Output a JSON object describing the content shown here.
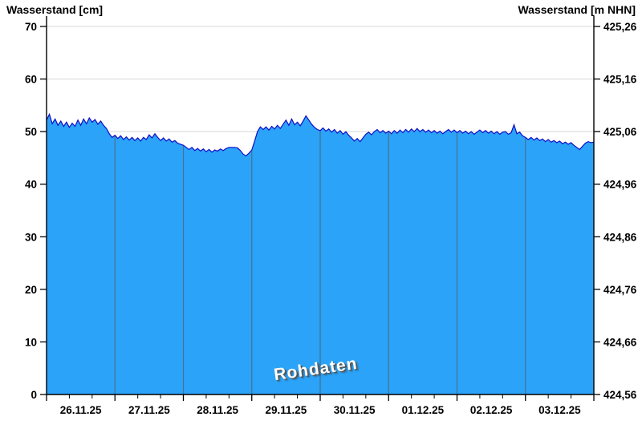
{
  "chart_data": {
    "type": "area",
    "title_left": "Wasserstand [cm]",
    "title_right": "Wasserstand [m NHN]",
    "watermark": "Rohdaten",
    "x_day_labels": [
      "26.11.25",
      "27.11.25",
      "28.11.25",
      "29.11.25",
      "30.11.25",
      "01.12.25",
      "02.12.25",
      "03.12.25"
    ],
    "minor_ticks_per_day": 2,
    "y_left_ticks": [
      0,
      10,
      20,
      30,
      40,
      50,
      60,
      70
    ],
    "y_right_ticks": [
      "424,56",
      "424,66",
      "424,76",
      "424,86",
      "424,96",
      "425,06",
      "425,16",
      "425,26"
    ],
    "ylim": [
      0,
      70
    ],
    "unit_left": "cm",
    "unit_right": "m NHN",
    "series": [
      {
        "name": "Wasserstand Rohdaten",
        "unit": "cm",
        "points_per_day": 24,
        "values": [
          52.2,
          53.3,
          51.5,
          52.4,
          51.2,
          52.0,
          51.0,
          51.8,
          50.8,
          51.6,
          51.0,
          52.2,
          51.2,
          52.4,
          51.5,
          52.6,
          51.8,
          52.3,
          51.4,
          52.0,
          51.2,
          50.6,
          49.6,
          48.9,
          49.3,
          48.7,
          49.2,
          48.5,
          49.0,
          48.4,
          48.9,
          48.3,
          48.8,
          48.2,
          48.9,
          48.5,
          49.4,
          48.8,
          49.6,
          48.9,
          48.3,
          48.8,
          48.2,
          48.6,
          48.0,
          48.3,
          47.8,
          47.6,
          47.4,
          47.0,
          46.6,
          47.0,
          46.4,
          46.8,
          46.3,
          46.7,
          46.2,
          46.6,
          46.1,
          46.5,
          46.3,
          46.7,
          46.4,
          46.8,
          47.0,
          47.0,
          47.0,
          46.9,
          46.4,
          45.7,
          45.4,
          45.9,
          46.5,
          48.2,
          50.0,
          50.9,
          50.4,
          50.9,
          50.3,
          51.0,
          50.5,
          51.2,
          50.6,
          51.4,
          52.2,
          51.2,
          52.4,
          51.3,
          51.8,
          51.1,
          52.0,
          53.0,
          52.2,
          51.4,
          50.8,
          50.4,
          50.2,
          50.7,
          50.1,
          50.5,
          49.9,
          50.4,
          49.7,
          50.2,
          49.5,
          50.0,
          49.3,
          48.8,
          48.2,
          48.7,
          48.1,
          48.8,
          49.5,
          49.9,
          49.4,
          50.0,
          50.4,
          49.8,
          50.2,
          49.7,
          50.1,
          49.6,
          50.2,
          49.7,
          50.3,
          49.8,
          50.4,
          49.9,
          50.5,
          50.0,
          50.6,
          50.0,
          50.4,
          49.9,
          50.3,
          49.8,
          50.2,
          49.7,
          50.1,
          49.6,
          50.0,
          50.4,
          49.9,
          50.3,
          49.8,
          50.2,
          49.7,
          50.1,
          49.6,
          50.0,
          49.5,
          49.9,
          50.3,
          49.8,
          50.2,
          49.7,
          50.1,
          49.6,
          50.0,
          49.5,
          49.9,
          50.0,
          49.5,
          49.8,
          51.3,
          49.6,
          49.9,
          49.2,
          48.9,
          48.5,
          48.9,
          48.4,
          48.8,
          48.3,
          48.6,
          48.1,
          48.5,
          48.0,
          48.3,
          47.9,
          48.2,
          47.7,
          48.0,
          47.6,
          47.9,
          47.4,
          47.0,
          46.6,
          47.2,
          47.8,
          48.1,
          47.9,
          48.0
        ]
      }
    ],
    "colors": {
      "fill": "#2BA3F8",
      "line": "#0D0DC8",
      "grid": "#D8D8D8",
      "day_line": "#47718F",
      "axis": "#000000",
      "text": "#000000",
      "watermark_text": "#FFFFFF",
      "watermark_shadow": "#555555",
      "background": "#FFFFFF"
    }
  }
}
